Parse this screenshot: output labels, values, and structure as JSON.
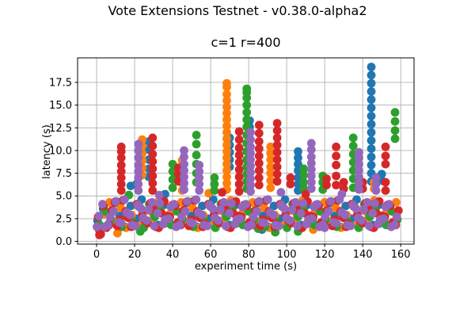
{
  "chart_data": {
    "type": "scatter",
    "suptitle": "Vote Extensions Testnet - v0.38.0-alpha2",
    "title": "c=1 r=400",
    "xlabel": "experiment time (s)",
    "ylabel": "latency (s)",
    "xlim": [
      -10,
      167
    ],
    "ylim": [
      -0.3,
      20.2
    ],
    "xticks": [
      0,
      20,
      40,
      60,
      80,
      100,
      120,
      140,
      160
    ],
    "yticks": [
      0,
      2.5,
      5,
      7.5,
      10,
      12.5,
      15,
      17.5
    ],
    "ytick_labels": [
      "0.0",
      "2.5",
      "5.0",
      "7.5",
      "10.0",
      "12.5",
      "15.0",
      "17.5"
    ],
    "grid": true,
    "grid_color": "#b0b0b0",
    "legend": null,
    "marker_radius_px": 5.4,
    "series": [
      {
        "color": "#1f77b4",
        "band": [
          {
            "x0": 0.5,
            "dx": 2.9,
            "y": [
              2.3,
              3.6,
              1.9,
              4.2,
              2.8,
              1.6,
              3.9,
              2.5,
              4.6,
              2.0,
              3.2,
              1.8,
              4.0,
              2.3,
              3.6,
              1.9,
              4.2,
              2.8,
              1.6,
              3.9,
              2.5,
              4.6,
              2.0,
              3.2,
              1.8,
              4.0,
              2.3,
              3.6,
              1.9,
              4.2,
              2.8,
              1.6,
              3.9,
              2.5,
              4.6,
              2.0,
              3.2,
              1.8,
              4.0,
              2.3,
              3.6,
              1.9,
              4.2,
              2.8,
              1.6,
              3.9,
              2.5,
              4.6,
              2.0,
              3.2,
              1.8,
              4.0,
              2.3,
              3.6,
              1.9
            ]
          }
        ],
        "spikes": [
          {
            "x": 18,
            "y": [
              6.1
            ]
          },
          {
            "x": 21,
            "y": [
              6.3
            ]
          },
          {
            "x": 27.5,
            "y": [
              7.1,
              8.0,
              9.0,
              10.1,
              11.0
            ]
          },
          {
            "x": 36,
            "y": [
              5.2
            ]
          },
          {
            "x": 70,
            "y": [
              8.2,
              9.0,
              9.8,
              10.6,
              11.4
            ]
          },
          {
            "x": 80.5,
            "y": [
              12.6,
              13.3
            ]
          },
          {
            "x": 87,
            "y": [
              1.3
            ]
          },
          {
            "x": 106,
            "y": [
              5.6,
              6.3,
              7.0,
              7.8,
              8.5,
              9.2,
              9.9
            ]
          },
          {
            "x": 144.5,
            "y": [
              6.6,
              7.5,
              8.4,
              9.3,
              10.2,
              11.1,
              12.0,
              12.9,
              13.8,
              14.7,
              15.6,
              16.5,
              17.4,
              18.3,
              19.2
            ]
          },
          {
            "x": 150,
            "y": [
              6.7,
              7.4
            ]
          }
        ]
      },
      {
        "color": "#ff7f0e",
        "band": [
          {
            "x0": 1.0,
            "dx": 2.9,
            "y": [
              1.7,
              3.0,
              4.3,
              2.2,
              3.7,
              1.5,
              2.9,
              4.1,
              1.9,
              3.4,
              2.6,
              4.5,
              2.1,
              3.0,
              1.7,
              4.3,
              2.2,
              3.7,
              1.5,
              2.9,
              4.1,
              1.9,
              3.4,
              2.6,
              4.5,
              2.1,
              3.0,
              1.7,
              4.3,
              2.2,
              3.7,
              1.5,
              2.9,
              4.1,
              1.9,
              3.4,
              2.6,
              4.5,
              2.1,
              3.0,
              1.7,
              4.3,
              2.2,
              3.7,
              1.5,
              2.9,
              4.1,
              1.9,
              3.4,
              2.6,
              4.5,
              2.1,
              3.0,
              1.7,
              4.3
            ]
          }
        ],
        "spikes": [
          {
            "x": 11,
            "y": [
              0.9
            ]
          },
          {
            "x": 24,
            "y": [
              7.3,
              8.1,
              8.9,
              9.7,
              10.5,
              11.2
            ]
          },
          {
            "x": 45,
            "y": [
              5.6,
              6.4,
              7.2,
              8.0,
              8.9
            ]
          },
          {
            "x": 59,
            "y": [
              5.3
            ]
          },
          {
            "x": 68.5,
            "y": [
              5.7,
              6.4,
              7.1,
              7.8,
              8.5,
              9.2,
              9.9,
              10.6,
              11.3,
              12.0,
              12.7,
              13.4,
              14.1,
              14.8,
              15.5,
              16.2,
              17.0,
              17.4
            ]
          },
          {
            "x": 88,
            "y": [
              1.6
            ]
          },
          {
            "x": 91.5,
            "y": [
              5.9,
              6.7,
              7.5,
              8.2,
              9.0,
              9.7,
              10.4
            ]
          },
          {
            "x": 114,
            "y": [
              1.3
            ]
          },
          {
            "x": 146,
            "y": [
              5.8,
              6.5
            ]
          }
        ]
      },
      {
        "color": "#2ca02c",
        "band": [
          {
            "x0": 1.6,
            "dx": 2.9,
            "y": [
              1.8,
              3.3,
              2.4,
              4.4,
              1.6,
              3.0,
              2.2,
              3.9,
              1.5,
              4.1,
              2.7,
              3.5,
              2.0,
              1.8,
              3.3,
              2.4,
              4.4,
              1.6,
              3.0,
              2.2,
              3.9,
              1.5,
              4.1,
              2.7,
              3.5,
              2.0,
              1.8,
              3.3,
              2.4,
              4.4,
              1.6,
              3.0,
              2.2,
              3.9,
              1.5,
              4.1,
              2.7,
              3.5,
              2.0,
              1.8,
              3.3,
              2.4,
              4.4,
              1.6,
              3.0,
              2.2,
              3.9,
              1.5,
              4.1,
              2.7,
              3.5,
              2.0,
              1.8,
              3.3,
              2.4
            ]
          }
        ],
        "spikes": [
          {
            "x": 17,
            "y": [
              5.1
            ]
          },
          {
            "x": 23,
            "y": [
              1.1
            ]
          },
          {
            "x": 40,
            "y": [
              5.9,
              6.8,
              7.7,
              8.5
            ]
          },
          {
            "x": 52.5,
            "y": [
              6.5,
              7.5,
              8.5,
              9.5,
              10.7,
              11.7
            ]
          },
          {
            "x": 62,
            "y": [
              5.6,
              6.3,
              7.0
            ]
          },
          {
            "x": 79,
            "y": [
              5.8,
              6.6,
              7.4,
              8.2,
              9.0,
              9.9,
              10.8,
              11.7,
              12.6,
              13.4,
              14.2,
              15.0,
              15.8,
              16.4,
              16.8
            ]
          },
          {
            "x": 85,
            "y": [
              1.4
            ]
          },
          {
            "x": 94,
            "y": [
              1.0
            ]
          },
          {
            "x": 106,
            "y": [
              1.1
            ]
          },
          {
            "x": 109,
            "y": [
              5.8,
              6.5,
              7.3,
              8.0
            ]
          },
          {
            "x": 119,
            "y": [
              5.7,
              6.5,
              7.2
            ]
          },
          {
            "x": 135,
            "y": [
              5.9,
              6.9,
              7.8,
              8.7,
              9.6,
              10.5,
              11.4
            ]
          },
          {
            "x": 157,
            "y": [
              11.3,
              12.2,
              13.2,
              14.2
            ]
          }
        ]
      },
      {
        "color": "#d62728",
        "band": [
          {
            "x0": 2.2,
            "dx": 2.9,
            "y": [
              0.8,
              1.5,
              3.4,
              1.7,
              4.5,
              2.6,
              1.9,
              3.8,
              2.3,
              4.2,
              1.6,
              3.1,
              2.8,
              4.0,
              2.1,
              3.4,
              1.7,
              4.5,
              2.6,
              1.9,
              3.8,
              2.3,
              4.2,
              1.6,
              3.1,
              2.8,
              4.0,
              2.1,
              3.4,
              1.7,
              4.5,
              2.6,
              1.9,
              3.8,
              2.3,
              4.2,
              1.6,
              3.1,
              2.8,
              4.0,
              2.1,
              3.4,
              1.7,
              4.5,
              2.6,
              1.9,
              3.8,
              2.3,
              4.2,
              1.6,
              3.1,
              2.8,
              4.0,
              2.1,
              3.4
            ]
          },
          {
            "x0": 0.8,
            "dx": 2.9,
            "y": [
              2.7,
              3.9,
              1.8,
              4.3,
              2.4,
              3.3,
              1.6,
              4.1,
              2.9,
              2.0,
              3.6,
              1.5,
              4.4,
              2.7,
              3.9,
              1.8,
              4.3,
              2.4,
              3.3,
              1.6,
              4.1,
              2.9,
              2.0,
              3.6,
              1.5,
              4.4,
              2.7,
              3.9,
              1.8,
              4.3,
              2.4,
              3.3,
              1.6,
              4.1,
              2.9,
              2.0,
              3.6,
              1.5,
              4.4,
              2.7,
              3.9,
              1.8,
              4.3,
              2.4,
              3.3,
              1.6,
              4.1,
              2.9,
              2.0,
              3.6,
              1.5,
              4.4,
              2.7,
              3.9,
              1.8
            ]
          }
        ],
        "spikes": [
          {
            "x": 1.5,
            "y": [
              0.7,
              1.2
            ]
          },
          {
            "x": 13,
            "y": [
              5.6,
              6.3,
              7.0,
              7.7,
              8.4,
              9.2,
              9.9,
              10.4
            ]
          },
          {
            "x": 29.5,
            "y": [
              5.6,
              6.4,
              7.2,
              8.0,
              8.8,
              9.6,
              10.5,
              11.4
            ]
          },
          {
            "x": 43,
            "y": [
              6.6,
              7.4,
              8.1
            ]
          },
          {
            "x": 66,
            "y": [
              5.4
            ]
          },
          {
            "x": 75,
            "y": [
              5.5,
              6.3,
              7.1,
              7.9,
              8.7,
              9.5,
              10.3,
              11.2,
              12.1
            ]
          },
          {
            "x": 85.5,
            "y": [
              6.2,
              7.0,
              7.8,
              8.6,
              9.4,
              10.2,
              11.0,
              11.9,
              12.8
            ]
          },
          {
            "x": 95,
            "y": [
              6.6,
              7.4,
              8.2,
              9.0,
              9.8,
              10.6,
              11.4,
              12.2,
              13.0
            ]
          },
          {
            "x": 102,
            "y": [
              6.3,
              7.0
            ]
          },
          {
            "x": 110,
            "y": [
              5.2
            ]
          },
          {
            "x": 121,
            "y": [
              6.2,
              6.9
            ]
          },
          {
            "x": 126,
            "y": [
              6.2,
              7.2,
              8.4,
              9.4,
              10.4
            ]
          },
          {
            "x": 130,
            "y": [
              5.8,
              6.5
            ]
          },
          {
            "x": 140,
            "y": [
              5.8,
              6.5
            ]
          },
          {
            "x": 152,
            "y": [
              5.6,
              6.5,
              8.5,
              9.4,
              10.4
            ]
          }
        ]
      },
      {
        "color": "#9467bd",
        "band": [
          {
            "x0": 0.2,
            "dx": 2.9,
            "y": [
              1.6,
              4.1,
              1.8,
              3.3,
              2.1,
              4.6,
              2.9,
              1.7,
              3.6,
              2.3,
              4.3,
              3.1,
              1.9,
              2.5,
              4.1,
              1.8,
              3.3,
              2.1,
              4.6,
              2.9,
              1.7,
              3.6,
              2.3,
              4.3,
              3.1,
              1.9,
              2.5,
              4.1,
              1.8,
              3.3,
              2.1,
              4.6,
              2.9,
              1.7,
              3.6,
              2.3,
              4.3,
              3.1,
              1.9,
              2.5,
              4.1,
              1.8,
              3.3,
              2.1,
              4.6,
              2.9,
              1.7,
              3.6,
              2.3,
              4.3,
              3.1,
              1.9,
              2.5,
              4.1,
              1.8
            ]
          },
          {
            "x0": 1.3,
            "dx": 2.9,
            "y": [
              2.8,
              1.6,
              2.7,
              4.4,
              2.0,
              3.2,
              1.8,
              4.0,
              2.6,
              3.5,
              1.7,
              4.2,
              2.4,
              3.8,
              1.6,
              2.7,
              4.4,
              2.0,
              3.2,
              1.8,
              4.0,
              2.6,
              3.5,
              1.7,
              4.2,
              2.4,
              3.8,
              1.6,
              2.7,
              4.4,
              2.0,
              3.2,
              1.8,
              4.0,
              2.6,
              3.5,
              1.7,
              4.2,
              2.4,
              3.8,
              1.6,
              2.7,
              4.4,
              2.0,
              3.2,
              1.8,
              4.0,
              2.6,
              3.5,
              1.7,
              4.2,
              2.4,
              3.8,
              1.6,
              2.7
            ]
          }
        ],
        "spikes": [
          {
            "x": 22,
            "y": [
              5.6,
              6.3,
              7.0,
              7.7,
              8.4,
              9.2,
              10.0,
              10.7
            ]
          },
          {
            "x": 33,
            "y": [
              5.1
            ]
          },
          {
            "x": 46,
            "y": [
              5.7,
              6.4,
              7.1,
              7.8,
              8.5,
              9.3,
              10.0
            ]
          },
          {
            "x": 54,
            "y": [
              5.6,
              6.3,
              7.0,
              7.7,
              8.4
            ]
          },
          {
            "x": 81,
            "y": [
              5.5,
              6.2,
              6.9,
              7.6,
              8.3,
              9.0,
              9.7,
              10.4,
              11.2,
              12.0
            ]
          },
          {
            "x": 97,
            "y": [
              5.4
            ]
          },
          {
            "x": 113,
            "y": [
              5.8,
              6.5,
              7.2,
              7.9,
              8.6,
              9.3,
              10.1,
              10.8
            ]
          },
          {
            "x": 120,
            "y": [
              1.5
            ]
          },
          {
            "x": 129,
            "y": [
              5.2
            ]
          },
          {
            "x": 138,
            "y": [
              5.7,
              6.4,
              7.1,
              7.8,
              8.5,
              9.2,
              9.8
            ]
          },
          {
            "x": 147,
            "y": [
              5.6,
              6.3,
              7.0
            ]
          }
        ]
      }
    ]
  }
}
